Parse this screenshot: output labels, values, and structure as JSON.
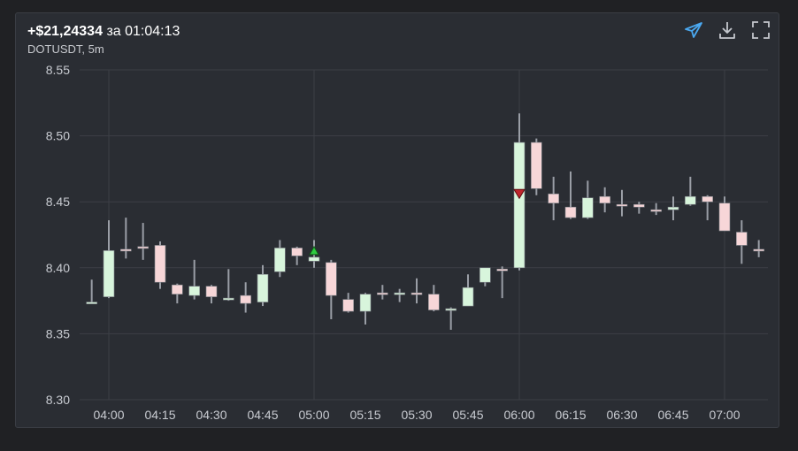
{
  "header": {
    "profit": "+$21,24334",
    "separator": "за",
    "duration": "01:04:13",
    "symbol": "DOTUSDT, 5m"
  },
  "toolbar": {
    "share_icon": "send-icon",
    "download_icon": "download-icon",
    "fullscreen_icon": "fullscreen-icon",
    "share_color": "#4aa8f0"
  },
  "chart_data": {
    "type": "candlestick",
    "symbol": "DOTUSDT",
    "interval": "5m",
    "ylim": [
      8.3,
      8.55
    ],
    "y_ticks": [
      "8.55",
      "8.50",
      "8.45",
      "8.40",
      "8.35",
      "8.30"
    ],
    "x_ticks": [
      "04:00",
      "04:15",
      "04:30",
      "04:45",
      "05:00",
      "05:15",
      "05:30",
      "05:45",
      "06:00",
      "06:15",
      "06:30",
      "06:45",
      "07:00"
    ],
    "grid": true,
    "colors": {
      "up": "#d8f5dc",
      "down": "#f7d6d8",
      "wick": "#9a9ea6",
      "buy_marker": "#2ecc40",
      "sell_marker": "#c0262d"
    },
    "candles": [
      {
        "time": "03:55",
        "open": 8.374,
        "high": 8.391,
        "low": 8.373,
        "close": 8.374
      },
      {
        "time": "04:00",
        "open": 8.378,
        "high": 8.436,
        "low": 8.377,
        "close": 8.413
      },
      {
        "time": "04:05",
        "open": 8.414,
        "high": 8.438,
        "low": 8.407,
        "close": 8.413
      },
      {
        "time": "04:10",
        "open": 8.416,
        "high": 8.434,
        "low": 8.406,
        "close": 8.415
      },
      {
        "time": "04:15",
        "open": 8.417,
        "high": 8.42,
        "low": 8.384,
        "close": 8.389
      },
      {
        "time": "04:20",
        "open": 8.387,
        "high": 8.388,
        "low": 8.373,
        "close": 8.38
      },
      {
        "time": "04:25",
        "open": 8.379,
        "high": 8.406,
        "low": 8.376,
        "close": 8.386
      },
      {
        "time": "04:30",
        "open": 8.386,
        "high": 8.387,
        "low": 8.373,
        "close": 8.378
      },
      {
        "time": "04:35",
        "open": 8.376,
        "high": 8.399,
        "low": 8.375,
        "close": 8.377
      },
      {
        "time": "04:40",
        "open": 8.379,
        "high": 8.389,
        "low": 8.366,
        "close": 8.373
      },
      {
        "time": "04:45",
        "open": 8.374,
        "high": 8.402,
        "low": 8.371,
        "close": 8.395
      },
      {
        "time": "04:50",
        "open": 8.397,
        "high": 8.421,
        "low": 8.393,
        "close": 8.415
      },
      {
        "time": "04:55",
        "open": 8.415,
        "high": 8.416,
        "low": 8.402,
        "close": 8.409
      },
      {
        "time": "05:00",
        "open": 8.405,
        "high": 8.421,
        "low": 8.4,
        "close": 8.408
      },
      {
        "time": "05:05",
        "open": 8.404,
        "high": 8.406,
        "low": 8.361,
        "close": 8.379
      },
      {
        "time": "05:10",
        "open": 8.376,
        "high": 8.381,
        "low": 8.366,
        "close": 8.367
      },
      {
        "time": "05:15",
        "open": 8.367,
        "high": 8.381,
        "low": 8.357,
        "close": 8.38
      },
      {
        "time": "05:20",
        "open": 8.381,
        "high": 8.387,
        "low": 8.376,
        "close": 8.38
      },
      {
        "time": "05:25",
        "open": 8.38,
        "high": 8.384,
        "low": 8.374,
        "close": 8.381
      },
      {
        "time": "05:30",
        "open": 8.381,
        "high": 8.392,
        "low": 8.373,
        "close": 8.38
      },
      {
        "time": "05:35",
        "open": 8.38,
        "high": 8.387,
        "low": 8.367,
        "close": 8.368
      },
      {
        "time": "05:40",
        "open": 8.368,
        "high": 8.37,
        "low": 8.353,
        "close": 8.369
      },
      {
        "time": "05:45",
        "open": 8.371,
        "high": 8.395,
        "low": 8.371,
        "close": 8.385
      },
      {
        "time": "05:50",
        "open": 8.389,
        "high": 8.4,
        "low": 8.386,
        "close": 8.4
      },
      {
        "time": "05:55",
        "open": 8.399,
        "high": 8.401,
        "low": 8.377,
        "close": 8.398
      },
      {
        "time": "06:00",
        "open": 8.4,
        "high": 8.517,
        "low": 8.398,
        "close": 8.495
      },
      {
        "time": "06:05",
        "open": 8.495,
        "high": 8.498,
        "low": 8.455,
        "close": 8.46
      },
      {
        "time": "06:10",
        "open": 8.456,
        "high": 8.469,
        "low": 8.436,
        "close": 8.449
      },
      {
        "time": "06:15",
        "open": 8.446,
        "high": 8.473,
        "low": 8.437,
        "close": 8.438
      },
      {
        "time": "06:20",
        "open": 8.438,
        "high": 8.466,
        "low": 8.437,
        "close": 8.453
      },
      {
        "time": "06:25",
        "open": 8.454,
        "high": 8.461,
        "low": 8.442,
        "close": 8.449
      },
      {
        "time": "06:30",
        "open": 8.448,
        "high": 8.459,
        "low": 8.439,
        "close": 8.447
      },
      {
        "time": "06:35",
        "open": 8.448,
        "high": 8.45,
        "low": 8.441,
        "close": 8.446
      },
      {
        "time": "06:40",
        "open": 8.444,
        "high": 8.449,
        "low": 8.44,
        "close": 8.443
      },
      {
        "time": "06:45",
        "open": 8.444,
        "high": 8.454,
        "low": 8.436,
        "close": 8.446
      },
      {
        "time": "06:50",
        "open": 8.448,
        "high": 8.469,
        "low": 8.447,
        "close": 8.454
      },
      {
        "time": "06:55",
        "open": 8.454,
        "high": 8.455,
        "low": 8.436,
        "close": 8.45
      },
      {
        "time": "07:00",
        "open": 8.449,
        "high": 8.454,
        "low": 8.428,
        "close": 8.428
      },
      {
        "time": "07:05",
        "open": 8.427,
        "high": 8.436,
        "low": 8.403,
        "close": 8.417
      },
      {
        "time": "07:10",
        "open": 8.414,
        "high": 8.421,
        "low": 8.408,
        "close": 8.413
      }
    ],
    "markers": [
      {
        "time": "05:00",
        "price": 8.412,
        "kind": "buy"
      },
      {
        "time": "06:00",
        "price": 8.456,
        "kind": "sell"
      }
    ]
  }
}
